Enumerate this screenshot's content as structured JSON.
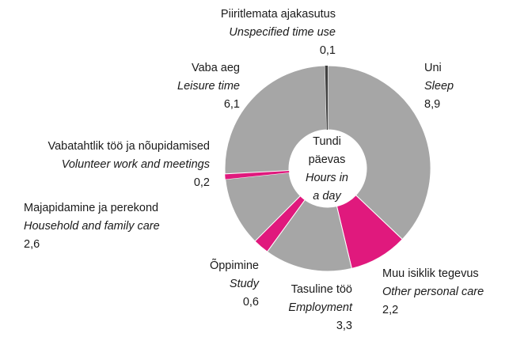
{
  "chart_data": {
    "type": "donut",
    "center_label": [
      "Tundi",
      "päevas",
      "Hours in",
      "a day"
    ],
    "categories": [
      "Uni",
      "Muu isiklik tegevus",
      "Tasuline töö",
      "Õppimine",
      "Majapidamine ja perekond",
      "Vabatahtlik töö ja nõupidamised",
      "Vaba aeg",
      "Piiritlemata ajakasutus"
    ],
    "categories_en": [
      "Sleep",
      "Other personal care",
      "Employment",
      "Study",
      "Household and family care",
      "Volunteer work and meetings",
      "Leisure time",
      "Unspecified time use"
    ],
    "values": [
      8.9,
      2.2,
      3.3,
      0.6,
      2.6,
      0.2,
      6.1,
      0.1
    ],
    "value_labels": [
      "8,9",
      "2,2",
      "3,3",
      "0,6",
      "2,6",
      "0,2",
      "6,1",
      "0,1"
    ],
    "colors": [
      "#a6a6a6",
      "#e0197d",
      "#a6a6a6",
      "#e0197d",
      "#a6a6a6",
      "#e0197d",
      "#a6a6a6",
      "#404040"
    ]
  }
}
